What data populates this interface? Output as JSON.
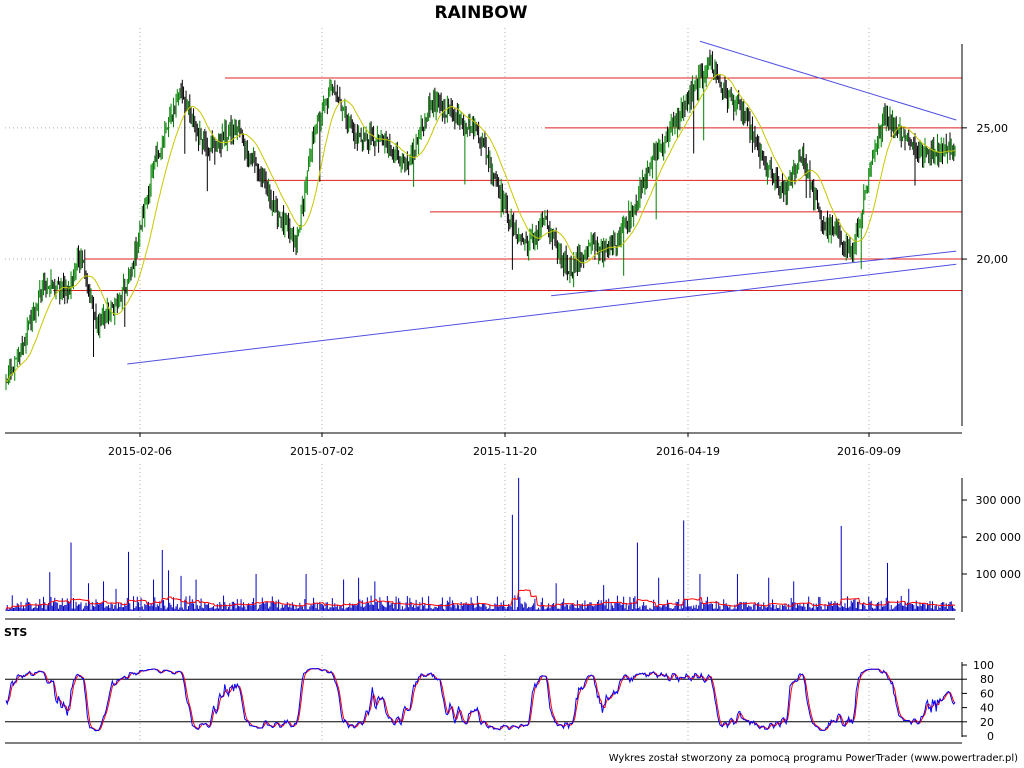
{
  "chart_data": [
    {
      "type": "candlestick",
      "title": "RAINBOW",
      "x_ticks": [
        "2015-02-06",
        "2015-07-02",
        "2015-11-20",
        "2016-04-19",
        "2016-09-09"
      ],
      "y_ticks": [
        "25,00",
        "20,00"
      ],
      "y_tick_values": [
        25,
        20
      ],
      "ylim": [
        13.6,
        28.5
      ],
      "grid": true,
      "colors": {
        "up": "#008000",
        "down": "#000000",
        "ma": "#c8c800",
        "levels": "#e02020",
        "trend": "#5050e0"
      },
      "key_points": [
        {
          "i": 0,
          "v": 15.3
        },
        {
          "i": 12,
          "v": 16.5
        },
        {
          "i": 30,
          "v": 19.0
        },
        {
          "i": 50,
          "v": 18.8
        },
        {
          "i": 60,
          "v": 20.3
        },
        {
          "i": 72,
          "v": 17.5
        },
        {
          "i": 90,
          "v": 18.3
        },
        {
          "i": 100,
          "v": 19.5
        },
        {
          "i": 118,
          "v": 23.5
        },
        {
          "i": 140,
          "v": 26.5
        },
        {
          "i": 152,
          "v": 24.8
        },
        {
          "i": 165,
          "v": 24.3
        },
        {
          "i": 185,
          "v": 25.0
        },
        {
          "i": 200,
          "v": 23.5
        },
        {
          "i": 215,
          "v": 22.0
        },
        {
          "i": 232,
          "v": 20.5
        },
        {
          "i": 247,
          "v": 25.0
        },
        {
          "i": 262,
          "v": 26.6
        },
        {
          "i": 280,
          "v": 24.6
        },
        {
          "i": 300,
          "v": 24.5
        },
        {
          "i": 322,
          "v": 23.5
        },
        {
          "i": 340,
          "v": 26.0
        },
        {
          "i": 360,
          "v": 25.5
        },
        {
          "i": 378,
          "v": 24.8
        },
        {
          "i": 392,
          "v": 23.0
        },
        {
          "i": 407,
          "v": 21.0
        },
        {
          "i": 418,
          "v": 20.5
        },
        {
          "i": 430,
          "v": 21.5
        },
        {
          "i": 442,
          "v": 20.2
        },
        {
          "i": 452,
          "v": 19.6
        },
        {
          "i": 467,
          "v": 20.5
        },
        {
          "i": 482,
          "v": 20.3
        },
        {
          "i": 497,
          "v": 21.5
        },
        {
          "i": 520,
          "v": 24.0
        },
        {
          "i": 545,
          "v": 26.0
        },
        {
          "i": 563,
          "v": 27.5
        },
        {
          "i": 575,
          "v": 26.3
        },
        {
          "i": 590,
          "v": 25.5
        },
        {
          "i": 607,
          "v": 23.5
        },
        {
          "i": 622,
          "v": 22.5
        },
        {
          "i": 637,
          "v": 24.0
        },
        {
          "i": 652,
          "v": 21.5
        },
        {
          "i": 667,
          "v": 20.8
        },
        {
          "i": 677,
          "v": 20.2
        },
        {
          "i": 692,
          "v": 23.5
        },
        {
          "i": 702,
          "v": 25.5
        },
        {
          "i": 717,
          "v": 24.8
        },
        {
          "i": 732,
          "v": 24.0
        },
        {
          "i": 747,
          "v": 24.2
        }
      ],
      "horizontal_levels": [
        26.9,
        25.0,
        23.0,
        21.8,
        20.0,
        18.8
      ],
      "trendlines": [
        [
          [
            97,
            16.0
          ],
          [
            760,
            19.8
          ]
        ],
        [
          [
            436,
            18.6
          ],
          [
            760,
            20.3
          ]
        ],
        [
          [
            555,
            28.3
          ],
          [
            760,
            25.3
          ]
        ]
      ]
    },
    {
      "type": "bar",
      "y_ticks": [
        "300 000",
        "200 000",
        "100 000"
      ],
      "y_tick_values": [
        300000,
        200000,
        100000
      ],
      "ylim": [
        0,
        365000
      ],
      "colors": {
        "bars": "#0000c0",
        "ma": "#ff0000"
      },
      "spikes": [
        {
          "i": 35,
          "v": 105000
        },
        {
          "i": 52,
          "v": 185000
        },
        {
          "i": 66,
          "v": 75000
        },
        {
          "i": 78,
          "v": 80000
        },
        {
          "i": 88,
          "v": 60000
        },
        {
          "i": 98,
          "v": 160000
        },
        {
          "i": 118,
          "v": 85000
        },
        {
          "i": 125,
          "v": 165000
        },
        {
          "i": 130,
          "v": 110000
        },
        {
          "i": 140,
          "v": 95000
        },
        {
          "i": 152,
          "v": 85000
        },
        {
          "i": 200,
          "v": 100000
        },
        {
          "i": 240,
          "v": 100000
        },
        {
          "i": 270,
          "v": 85000
        },
        {
          "i": 282,
          "v": 90000
        },
        {
          "i": 295,
          "v": 80000
        },
        {
          "i": 405,
          "v": 260000
        },
        {
          "i": 410,
          "v": 360000
        },
        {
          "i": 440,
          "v": 75000
        },
        {
          "i": 478,
          "v": 70000
        },
        {
          "i": 505,
          "v": 185000
        },
        {
          "i": 522,
          "v": 90000
        },
        {
          "i": 542,
          "v": 245000
        },
        {
          "i": 555,
          "v": 100000
        },
        {
          "i": 585,
          "v": 100000
        },
        {
          "i": 610,
          "v": 90000
        },
        {
          "i": 630,
          "v": 80000
        },
        {
          "i": 668,
          "v": 230000
        },
        {
          "i": 705,
          "v": 130000
        },
        {
          "i": 722,
          "v": 60000
        }
      ]
    },
    {
      "type": "line",
      "label": "STS",
      "y_ticks": [
        "100",
        "80",
        "60",
        "40",
        "20",
        "0"
      ],
      "y_tick_values": [
        100,
        80,
        60,
        40,
        20,
        0
      ],
      "levels": [
        80,
        20
      ],
      "ylim": [
        0,
        100
      ],
      "colors": {
        "fast": "#0000ff",
        "slow": "#ff0000"
      }
    }
  ],
  "footer": "Wykres został stworzony za pomocą programu PowerTrader (www.powertrader.pl)"
}
